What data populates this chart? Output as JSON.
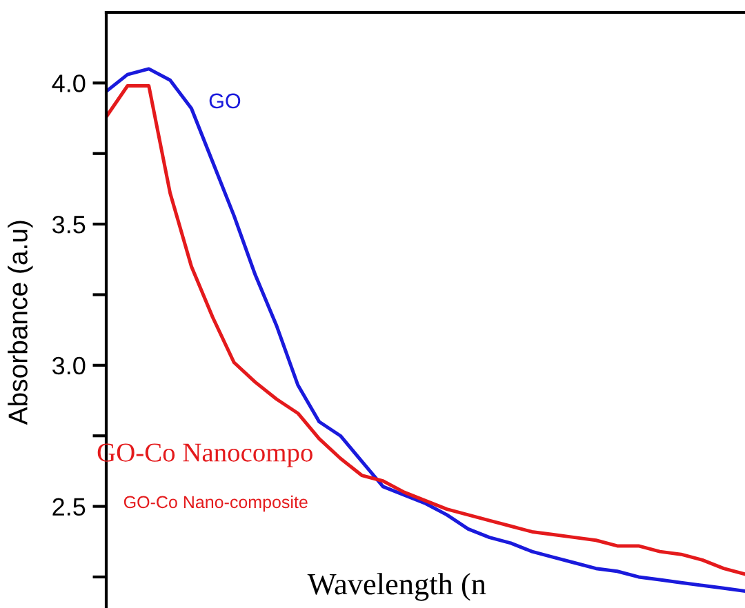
{
  "chart_data": {
    "type": "line",
    "xlabel": "Wavelength (n",
    "ylabel": "Absorbance (a.u)",
    "categories": [
      null,
      null,
      null,
      null,
      null,
      null,
      null,
      null,
      null,
      null,
      null,
      null,
      null,
      null,
      null,
      null,
      null,
      null,
      null,
      null,
      null,
      null,
      null,
      null,
      null,
      null,
      null,
      null,
      null,
      null,
      null
    ],
    "series": [
      {
        "name": "GO",
        "color": "#1a1adc",
        "values": [
          3.97,
          4.03,
          4.05,
          4.01,
          3.91,
          3.72,
          3.53,
          3.32,
          3.14,
          2.93,
          2.8,
          2.75,
          2.66,
          2.57,
          2.54,
          2.51,
          2.47,
          2.42,
          2.39,
          2.37,
          2.34,
          2.32,
          2.3,
          2.28,
          2.27,
          2.25,
          2.24,
          2.23,
          2.22,
          2.21,
          2.2
        ]
      },
      {
        "name": "GO-Co Nano-composite",
        "color": "#e41a1c",
        "values": [
          3.88,
          3.99,
          3.99,
          3.61,
          3.35,
          3.17,
          3.01,
          2.94,
          2.88,
          2.83,
          2.74,
          2.67,
          2.61,
          2.59,
          2.55,
          2.52,
          2.49,
          2.47,
          2.45,
          2.43,
          2.41,
          2.4,
          2.39,
          2.38,
          2.36,
          2.36,
          2.34,
          2.33,
          2.31,
          2.28,
          2.26
        ]
      }
    ],
    "annotations": [
      "GO-Co Nanocompo"
    ],
    "ylim": [
      2.14,
      4.25
    ],
    "yticks": [
      2.5,
      {
        "value": 3.0,
        "label": "3.0"
      },
      3.5,
      {
        "value": 4.0,
        "label": "4.0"
      },
      {
        "value": 2.25,
        "label": null
      },
      {
        "value": 2.75,
        "label": null
      },
      {
        "value": 3.25,
        "label": null
      },
      {
        "value": 3.75,
        "label": null
      }
    ],
    "tick_labels": "y",
    "grid": false,
    "legend": false,
    "marker": "none",
    "line_style": "solid"
  }
}
